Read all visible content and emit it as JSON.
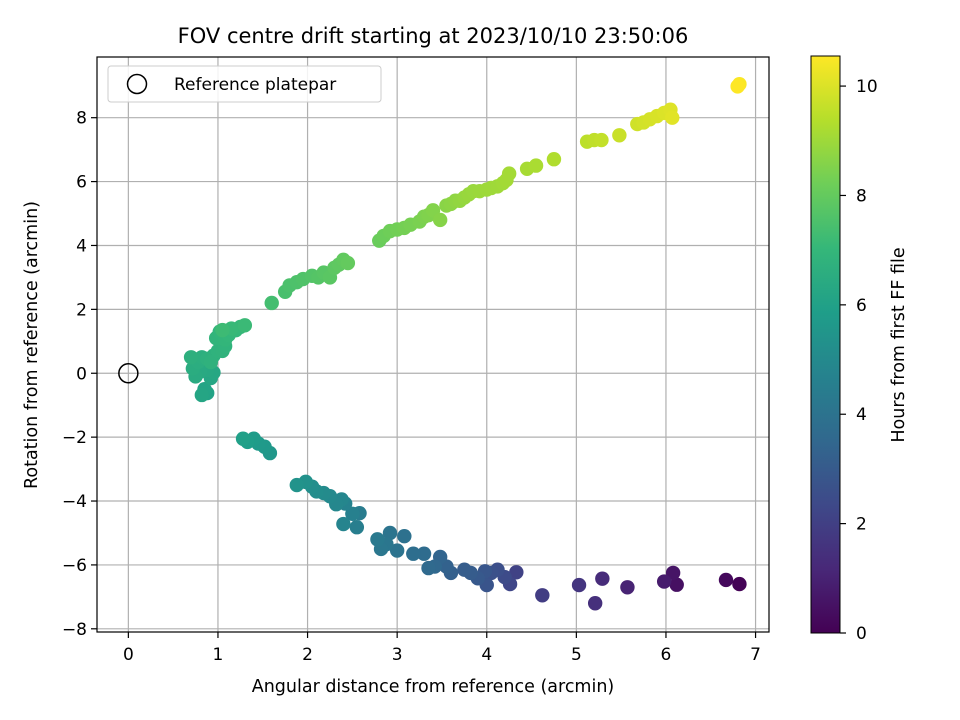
{
  "chart_data": {
    "type": "scatter",
    "title": "FOV centre drift starting at 2023/10/10 23:50:06",
    "xlabel": "Angular distance from reference (arcmin)",
    "ylabel": "Rotation from reference (arcmin)",
    "xlim": [
      -0.35,
      7.15
    ],
    "ylim": [
      -8.1,
      9.9
    ],
    "xticks": [
      0,
      1,
      2,
      3,
      4,
      5,
      6,
      7
    ],
    "yticks": [
      -8,
      -6,
      -4,
      -2,
      0,
      2,
      4,
      6,
      8
    ],
    "grid": true,
    "legend": {
      "position": "top-left",
      "entries": [
        "Reference platepar"
      ]
    },
    "reference_point": {
      "x": 0,
      "y": 0
    },
    "colorbar": {
      "label": "Hours from first FF file",
      "colormap": "viridis",
      "range": [
        0,
        10.55
      ],
      "ticks": [
        0,
        2,
        4,
        6,
        8,
        10
      ]
    },
    "points": [
      [
        6.82,
        -6.6,
        0.05
      ],
      [
        6.67,
        -6.47,
        0.25
      ],
      [
        6.12,
        -6.62,
        0.45
      ],
      [
        6.08,
        -6.25,
        0.6
      ],
      [
        5.98,
        -6.52,
        0.8
      ],
      [
        5.57,
        -6.7,
        1.05
      ],
      [
        5.29,
        -6.43,
        1.3
      ],
      [
        5.21,
        -7.2,
        1.45
      ],
      [
        5.03,
        -6.63,
        1.65
      ],
      [
        4.62,
        -6.95,
        1.9
      ],
      [
        4.33,
        -6.23,
        2.1
      ],
      [
        4.26,
        -6.6,
        2.25
      ],
      [
        4.2,
        -6.38,
        2.4
      ],
      [
        4.12,
        -6.15,
        2.55
      ],
      [
        4.05,
        -6.25,
        2.65
      ],
      [
        4.0,
        -6.63,
        2.75
      ],
      [
        3.98,
        -6.2,
        2.85
      ],
      [
        3.9,
        -6.42,
        2.95
      ],
      [
        3.82,
        -6.25,
        3.05
      ],
      [
        3.75,
        -6.15,
        3.1
      ],
      [
        3.6,
        -6.25,
        3.2
      ],
      [
        3.55,
        -6.05,
        3.3
      ],
      [
        3.48,
        -5.75,
        3.4
      ],
      [
        3.42,
        -6.05,
        3.5
      ],
      [
        3.35,
        -6.1,
        3.6
      ],
      [
        3.3,
        -5.65,
        3.7
      ],
      [
        3.18,
        -5.65,
        3.8
      ],
      [
        3.08,
        -5.1,
        3.9
      ],
      [
        3.0,
        -5.55,
        4.0
      ],
      [
        2.92,
        -5.0,
        4.05
      ],
      [
        2.88,
        -5.35,
        4.15
      ],
      [
        2.82,
        -5.5,
        4.2
      ],
      [
        2.78,
        -5.2,
        4.3
      ],
      [
        2.58,
        -4.38,
        4.4
      ],
      [
        2.55,
        -4.82,
        4.5
      ],
      [
        2.5,
        -4.4,
        4.6
      ],
      [
        2.42,
        -4.08,
        4.7
      ],
      [
        2.4,
        -4.72,
        4.75
      ],
      [
        2.38,
        -3.95,
        4.85
      ],
      [
        2.32,
        -4.1,
        4.9
      ],
      [
        2.25,
        -3.85,
        5.0
      ],
      [
        2.18,
        -3.75,
        5.05
      ],
      [
        2.1,
        -3.7,
        5.15
      ],
      [
        2.05,
        -3.55,
        5.2
      ],
      [
        1.98,
        -3.4,
        5.3
      ],
      [
        1.88,
        -3.5,
        5.4
      ],
      [
        1.58,
        -2.5,
        5.55
      ],
      [
        1.52,
        -2.3,
        5.65
      ],
      [
        1.45,
        -2.2,
        5.7
      ],
      [
        1.4,
        -2.05,
        5.8
      ],
      [
        1.33,
        -2.15,
        5.85
      ],
      [
        1.28,
        -2.05,
        5.95
      ],
      [
        0.88,
        -0.62,
        6.1
      ],
      [
        0.85,
        -0.5,
        6.15
      ],
      [
        0.82,
        -0.68,
        6.2
      ],
      [
        0.92,
        -0.15,
        6.25
      ],
      [
        0.95,
        0.02,
        6.3
      ],
      [
        0.88,
        0.1,
        6.35
      ],
      [
        0.8,
        0.05,
        6.4
      ],
      [
        0.75,
        -0.1,
        6.45
      ],
      [
        0.72,
        0.15,
        6.5
      ],
      [
        0.78,
        0.35,
        6.55
      ],
      [
        0.82,
        0.5,
        6.6
      ],
      [
        0.7,
        0.5,
        6.65
      ],
      [
        0.88,
        0.45,
        6.7
      ],
      [
        0.95,
        0.55,
        6.72
      ],
      [
        0.92,
        0.35,
        6.75
      ],
      [
        1.0,
        0.7,
        6.78
      ],
      [
        1.05,
        0.7,
        6.82
      ],
      [
        1.08,
        0.85,
        6.85
      ],
      [
        0.98,
        1.1,
        6.88
      ],
      [
        1.02,
        1.3,
        6.92
      ],
      [
        1.08,
        1.05,
        6.95
      ],
      [
        1.12,
        1.2,
        6.98
      ],
      [
        1.2,
        1.35,
        7.02
      ],
      [
        1.25,
        1.45,
        7.05
      ],
      [
        1.15,
        1.4,
        7.1
      ],
      [
        1.3,
        1.5,
        7.15
      ],
      [
        1.05,
        1.35,
        7.2
      ],
      [
        1.6,
        2.2,
        7.35
      ],
      [
        1.75,
        2.55,
        7.45
      ],
      [
        1.8,
        2.75,
        7.5
      ],
      [
        1.88,
        2.85,
        7.55
      ],
      [
        1.95,
        2.95,
        7.6
      ],
      [
        2.05,
        3.05,
        7.65
      ],
      [
        2.12,
        3.0,
        7.7
      ],
      [
        2.18,
        3.15,
        7.75
      ],
      [
        2.25,
        3.0,
        7.8
      ],
      [
        2.3,
        3.3,
        7.85
      ],
      [
        2.35,
        3.4,
        7.9
      ],
      [
        2.4,
        3.55,
        7.95
      ],
      [
        2.45,
        3.45,
        8.0
      ],
      [
        2.8,
        4.15,
        8.1
      ],
      [
        2.85,
        4.3,
        8.15
      ],
      [
        2.92,
        4.45,
        8.2
      ],
      [
        3.0,
        4.5,
        8.25
      ],
      [
        3.08,
        4.55,
        8.3
      ],
      [
        3.15,
        4.65,
        8.35
      ],
      [
        3.25,
        4.75,
        8.4
      ],
      [
        3.3,
        4.9,
        8.45
      ],
      [
        3.35,
        4.95,
        8.5
      ],
      [
        3.4,
        5.1,
        8.55
      ],
      [
        3.48,
        4.8,
        8.6
      ],
      [
        3.55,
        5.25,
        8.65
      ],
      [
        3.6,
        5.3,
        8.7
      ],
      [
        3.65,
        5.4,
        8.75
      ],
      [
        3.7,
        5.4,
        8.8
      ],
      [
        3.75,
        5.5,
        8.85
      ],
      [
        3.8,
        5.6,
        8.9
      ],
      [
        3.85,
        5.7,
        8.92
      ],
      [
        3.92,
        5.7,
        8.95
      ],
      [
        4.0,
        5.75,
        8.98
      ],
      [
        4.05,
        5.8,
        9.0
      ],
      [
        4.12,
        5.85,
        9.02
      ],
      [
        4.18,
        5.95,
        9.05
      ],
      [
        4.22,
        6.05,
        9.08
      ],
      [
        4.25,
        6.25,
        9.1
      ],
      [
        4.45,
        6.4,
        9.15
      ],
      [
        4.55,
        6.5,
        9.2
      ],
      [
        4.75,
        6.7,
        9.3
      ],
      [
        5.12,
        7.25,
        9.5
      ],
      [
        5.2,
        7.3,
        9.55
      ],
      [
        5.28,
        7.3,
        9.6
      ],
      [
        5.48,
        7.45,
        9.7
      ],
      [
        5.68,
        7.8,
        9.8
      ],
      [
        5.75,
        7.85,
        9.85
      ],
      [
        5.82,
        7.95,
        9.9
      ],
      [
        5.9,
        8.05,
        9.95
      ],
      [
        5.98,
        8.15,
        10.0
      ],
      [
        6.05,
        8.25,
        10.05
      ],
      [
        6.07,
        8.0,
        10.1
      ],
      [
        6.82,
        9.05,
        10.5
      ],
      [
        6.8,
        8.98,
        10.55
      ]
    ]
  }
}
